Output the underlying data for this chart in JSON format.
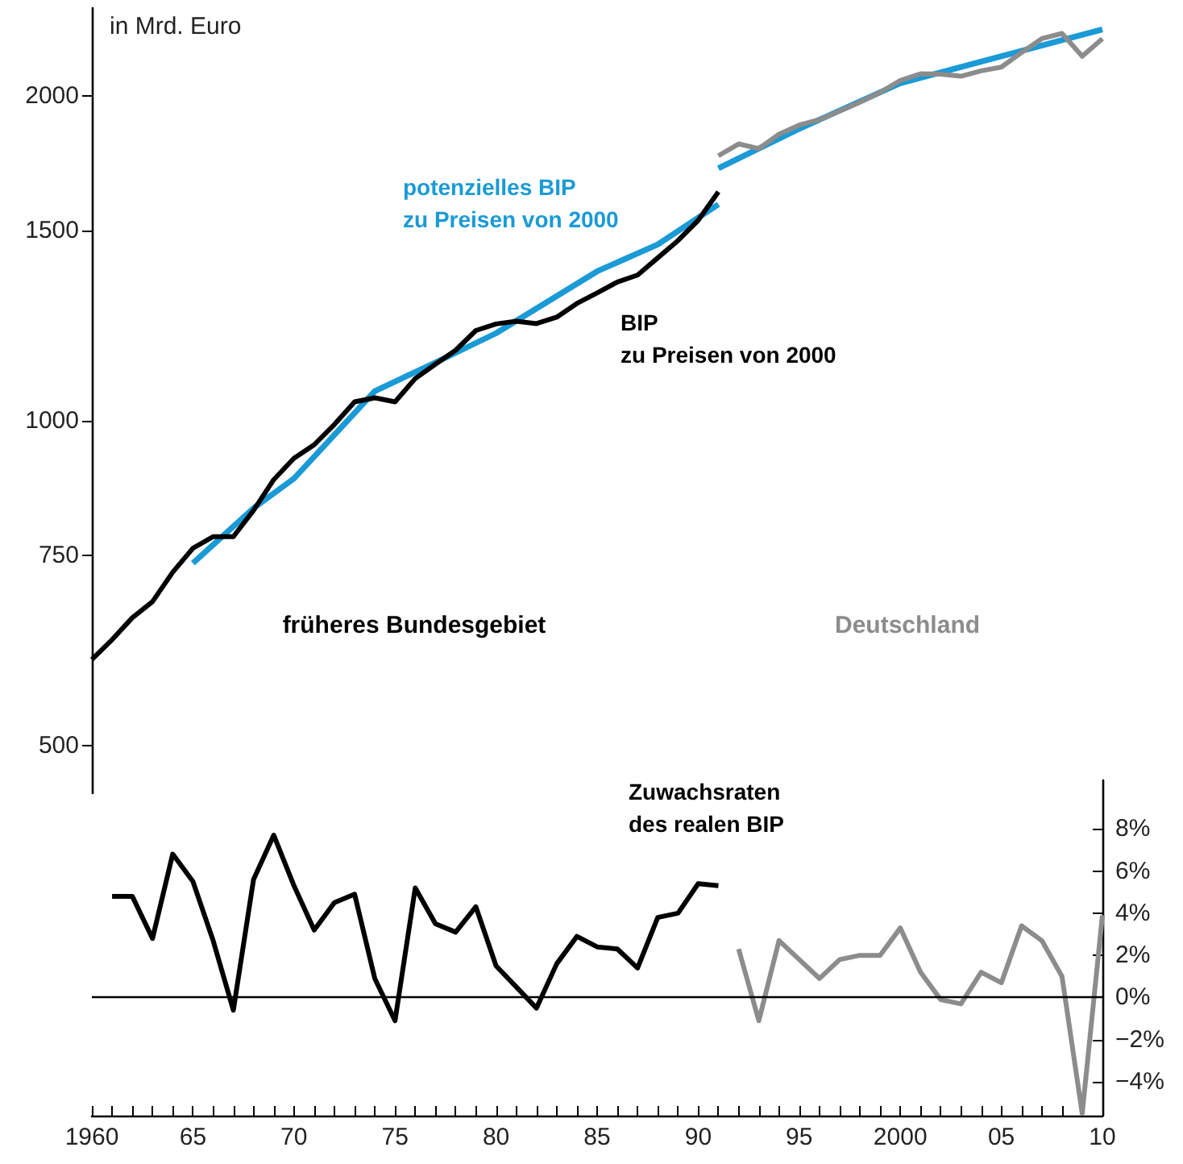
{
  "chart_data": [
    {
      "type": "line",
      "ylabel": "in Mrd. Euro",
      "log": "y",
      "xlim": [
        1960,
        2010
      ],
      "ylim": [
        452,
        2410
      ],
      "yticks": [
        500,
        750,
        1000,
        1500,
        2000
      ],
      "tick_labels": "y",
      "grid": false,
      "legend": false,
      "marker": "none",
      "line_style": "solid",
      "annotations": [
        "früheres Bundesgebiet",
        "Deutschland"
      ],
      "series": [
        {
          "name": "BIP\nzu Preisen von 2000",
          "color": "#000000",
          "x": [
            1960,
            1961,
            1962,
            1963,
            1964,
            1965,
            1966,
            1967,
            1968,
            1969,
            1970,
            1971,
            1972,
            1973,
            1974,
            1975,
            1976,
            1977,
            1978,
            1979,
            1980,
            1981,
            1982,
            1983,
            1984,
            1985,
            1986,
            1987,
            1988,
            1989,
            1990,
            1991
          ],
          "values": [
            601,
            627,
            657,
            680,
            724,
            762,
            781,
            781,
            826,
            882,
            923,
            950,
            992,
            1041,
            1050,
            1041,
            1094,
            1128,
            1162,
            1212,
            1229,
            1236,
            1230,
            1247,
            1284,
            1313,
            1344,
            1364,
            1415,
            1468,
            1533,
            1629
          ]
        },
        {
          "color": "#8c8c8c",
          "x": [
            1991,
            1992,
            1993,
            1994,
            1995,
            1996,
            1997,
            1998,
            1999,
            2000,
            2001,
            2002,
            2003,
            2004,
            2005,
            2006,
            2007,
            2008,
            2009,
            2010
          ],
          "values": [
            1759,
            1804,
            1786,
            1842,
            1878,
            1900,
            1935,
            1972,
            2013,
            2065,
            2095,
            2093,
            2084,
            2108,
            2125,
            2192,
            2258,
            2283,
            2175,
            2258
          ]
        },
        {
          "name": "potenzielles BIP\nzu Preisen von 2000",
          "color": "#1a9ad6",
          "x": [
            1965,
            1968,
            1970,
            1974,
            1977,
            1980,
            1985,
            1988,
            1991
          ],
          "values": [
            738,
            830,
            884,
            1065,
            1132,
            1205,
            1375,
            1456,
            1586
          ]
        },
        {
          "color": "#1a9ad6",
          "x": [
            1991,
            1995,
            2000,
            2005,
            2010
          ],
          "values": [
            1713,
            1863,
            2053,
            2175,
            2303
          ]
        }
      ]
    },
    {
      "type": "line",
      "title": "Zuwachsraten\ndes realen BIP",
      "xlim": [
        1960,
        2010
      ],
      "ylim": [
        -5.6,
        10.3
      ],
      "grid": false,
      "legend": false,
      "marker": "none",
      "line_style": "solid",
      "yticks": [
        {
          "value": -4,
          "label": "−4%"
        },
        {
          "value": -2,
          "label": "−2%"
        },
        {
          "value": 0,
          "label": "0%"
        },
        {
          "value": 2,
          "label": "2%"
        },
        {
          "value": 4,
          "label": "4%"
        },
        {
          "value": 6,
          "label": "6%"
        },
        {
          "value": 8,
          "label": "8%"
        }
      ],
      "xticks": [
        {
          "value": 1960,
          "label": "1960"
        },
        {
          "value": 1961,
          "label": null
        },
        {
          "value": 1962,
          "label": null
        },
        {
          "value": 1963,
          "label": null
        },
        {
          "value": 1964,
          "label": null
        },
        {
          "value": 1965,
          "label": "65"
        },
        {
          "value": 1966,
          "label": null
        },
        {
          "value": 1967,
          "label": null
        },
        {
          "value": 1968,
          "label": null
        },
        {
          "value": 1969,
          "label": null
        },
        {
          "value": 1970,
          "label": "70"
        },
        {
          "value": 1971,
          "label": null
        },
        {
          "value": 1972,
          "label": null
        },
        {
          "value": 1973,
          "label": null
        },
        {
          "value": 1974,
          "label": null
        },
        {
          "value": 1975,
          "label": "75"
        },
        {
          "value": 1976,
          "label": null
        },
        {
          "value": 1977,
          "label": null
        },
        {
          "value": 1978,
          "label": null
        },
        {
          "value": 1979,
          "label": null
        },
        {
          "value": 1980,
          "label": "80"
        },
        {
          "value": 1981,
          "label": null
        },
        {
          "value": 1982,
          "label": null
        },
        {
          "value": 1983,
          "label": null
        },
        {
          "value": 1984,
          "label": null
        },
        {
          "value": 1985,
          "label": "85"
        },
        {
          "value": 1986,
          "label": null
        },
        {
          "value": 1987,
          "label": null
        },
        {
          "value": 1988,
          "label": null
        },
        {
          "value": 1989,
          "label": null
        },
        {
          "value": 1990,
          "label": "90"
        },
        {
          "value": 1991,
          "label": null
        },
        {
          "value": 1992,
          "label": null
        },
        {
          "value": 1993,
          "label": null
        },
        {
          "value": 1994,
          "label": null
        },
        {
          "value": 1995,
          "label": "95"
        },
        {
          "value": 1996,
          "label": null
        },
        {
          "value": 1997,
          "label": null
        },
        {
          "value": 1998,
          "label": null
        },
        {
          "value": 1999,
          "label": null
        },
        {
          "value": 2000,
          "label": "2000"
        },
        {
          "value": 2001,
          "label": null
        },
        {
          "value": 2002,
          "label": null
        },
        {
          "value": 2003,
          "label": null
        },
        {
          "value": 2004,
          "label": null
        },
        {
          "value": 2005,
          "label": "05"
        },
        {
          "value": 2006,
          "label": null
        },
        {
          "value": 2007,
          "label": null
        },
        {
          "value": 2008,
          "label": null
        },
        {
          "value": 2009,
          "label": null
        },
        {
          "value": 2010,
          "label": "10"
        }
      ],
      "ref_lines": [
        {
          "axis": "y",
          "value": 0,
          "color": "#000000"
        }
      ],
      "series": [
        {
          "color": "#000000",
          "x": [
            1961,
            1962,
            1963,
            1964,
            1965,
            1966,
            1967,
            1968,
            1969,
            1970,
            1971,
            1972,
            1973,
            1974,
            1975,
            1976,
            1977,
            1978,
            1979,
            1980,
            1981,
            1982,
            1983,
            1984,
            1985,
            1986,
            1987,
            1988,
            1989,
            1990,
            1991
          ],
          "values": [
            4.8,
            4.8,
            2.8,
            6.8,
            5.5,
            2.7,
            -0.6,
            5.6,
            7.7,
            5.3,
            3.2,
            4.5,
            4.9,
            0.9,
            -1.1,
            5.2,
            3.5,
            3.1,
            4.3,
            1.5,
            0.5,
            -0.5,
            1.6,
            2.9,
            2.4,
            2.3,
            1.4,
            3.8,
            4.0,
            5.4,
            5.3
          ]
        },
        {
          "color": "#8c8c8c",
          "x": [
            1992,
            1993,
            1994,
            1995,
            1996,
            1997,
            1998,
            1999,
            2000,
            2001,
            2002,
            2003,
            2004,
            2005,
            2006,
            2007,
            2008,
            2009,
            2010
          ],
          "values": [
            2.3,
            -1.1,
            2.7,
            1.8,
            0.9,
            1.8,
            2.0,
            2.0,
            3.3,
            1.2,
            -0.1,
            -0.3,
            1.2,
            0.7,
            3.4,
            2.7,
            1.0,
            -5.5,
            3.9
          ]
        }
      ]
    }
  ]
}
